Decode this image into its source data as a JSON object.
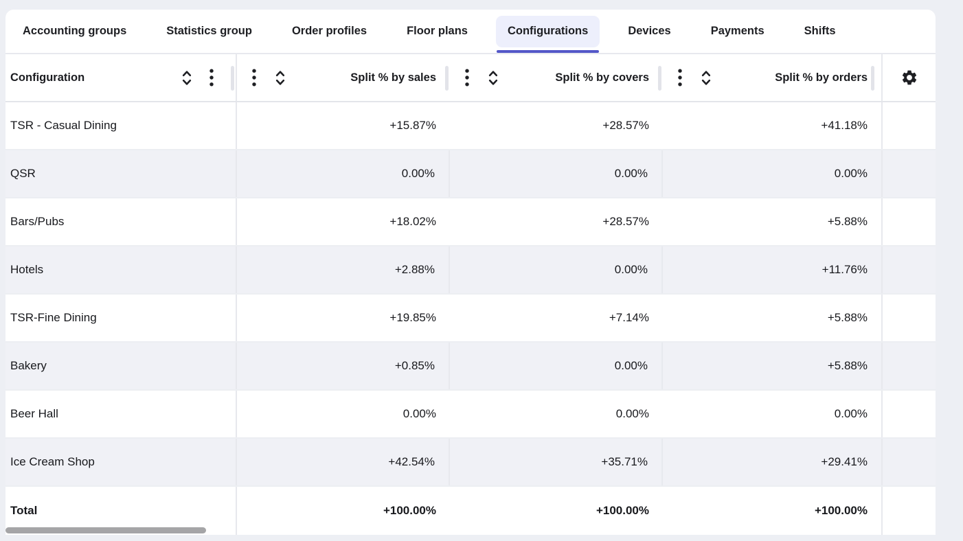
{
  "tabs": {
    "items": [
      {
        "label": "Accounting groups",
        "active": false
      },
      {
        "label": "Statistics group",
        "active": false
      },
      {
        "label": "Order profiles",
        "active": false
      },
      {
        "label": "Floor plans",
        "active": false
      },
      {
        "label": "Configurations",
        "active": true
      },
      {
        "label": "Devices",
        "active": false
      },
      {
        "label": "Payments",
        "active": false
      },
      {
        "label": "Shifts",
        "active": false
      }
    ]
  },
  "table": {
    "columns": [
      {
        "key": "configuration",
        "label": "Configuration",
        "align": "left",
        "icons": [
          "sort-icon",
          "kebab-menu-icon"
        ]
      },
      {
        "key": "sales",
        "label": "Split % by sales",
        "align": "right",
        "icons": [
          "kebab-menu-icon",
          "sort-icon"
        ]
      },
      {
        "key": "covers",
        "label": "Split % by covers",
        "align": "right",
        "icons": [
          "kebab-menu-icon",
          "sort-icon"
        ]
      },
      {
        "key": "orders",
        "label": "Split % by orders",
        "align": "right",
        "icons": [
          "kebab-menu-icon",
          "sort-icon"
        ]
      },
      {
        "key": "settings",
        "label": "",
        "align": "center",
        "icons": [
          "gear-icon"
        ]
      }
    ],
    "rows": [
      {
        "configuration": "TSR - Casual Dining",
        "sales": "+15.87%",
        "covers": "+28.57%",
        "orders": "+41.18%"
      },
      {
        "configuration": "QSR",
        "sales": "0.00%",
        "covers": "0.00%",
        "orders": "0.00%"
      },
      {
        "configuration": "Bars/Pubs",
        "sales": "+18.02%",
        "covers": "+28.57%",
        "orders": "+5.88%"
      },
      {
        "configuration": "Hotels",
        "sales": "+2.88%",
        "covers": "0.00%",
        "orders": "+11.76%"
      },
      {
        "configuration": "TSR-Fine Dining",
        "sales": "+19.85%",
        "covers": "+7.14%",
        "orders": "+5.88%"
      },
      {
        "configuration": "Bakery",
        "sales": "+0.85%",
        "covers": "0.00%",
        "orders": "+5.88%"
      },
      {
        "configuration": "Beer Hall",
        "sales": "0.00%",
        "covers": "0.00%",
        "orders": "0.00%"
      },
      {
        "configuration": "Ice Cream Shop",
        "sales": "+42.54%",
        "covers": "+35.71%",
        "orders": "+29.41%"
      }
    ],
    "total_row": {
      "configuration": "Total",
      "sales": "+100.00%",
      "covers": "+100.00%",
      "orders": "+100.00%"
    }
  },
  "colors": {
    "accent": "#5357c8",
    "active_tab_bg": "#edeffc",
    "alt_row_bg": "#f0f1f6",
    "page_bg": "#edeff4",
    "scrollbar_thumb": "#a5a5a7"
  }
}
